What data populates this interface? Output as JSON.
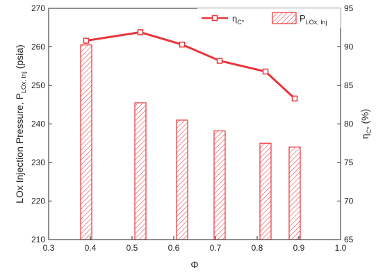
{
  "chart_data": {
    "type": "bar",
    "xlabel": "Φ",
    "xlim": [
      0.3,
      1.0
    ],
    "xticks": [
      "0.3",
      "0.4",
      "0.5",
      "0.6",
      "0.7",
      "0.8",
      "0.9",
      "1.0"
    ],
    "left_axis": {
      "label_main": "LOx Injection Pressure, P",
      "label_sub": "LOx, Inj",
      "label_tail": " (psia)",
      "ylim": [
        210,
        270
      ],
      "ticks": [
        "210",
        "220",
        "230",
        "240",
        "250",
        "260",
        "270"
      ]
    },
    "right_axis": {
      "label_main": "η",
      "label_sub": "C*",
      "label_tail": " (%)",
      "ylim": [
        65,
        95
      ],
      "ticks": [
        "65",
        "70",
        "75",
        "80",
        "85",
        "90",
        "95"
      ]
    },
    "bars": {
      "legend_main": "P",
      "legend_sub": "LOx, Inj",
      "x": [
        0.39,
        0.52,
        0.62,
        0.71,
        0.82,
        0.89
      ],
      "values": [
        260.5,
        245.5,
        241.0,
        238.2,
        235.0,
        234.0
      ],
      "color": "#e8343a"
    },
    "line": {
      "legend_main": "η",
      "legend_sub": "C*",
      "x": [
        0.39,
        0.52,
        0.62,
        0.71,
        0.82,
        0.89
      ],
      "values": [
        90.8,
        91.9,
        90.3,
        88.2,
        86.8,
        83.3
      ],
      "color": "#e8343a"
    }
  }
}
